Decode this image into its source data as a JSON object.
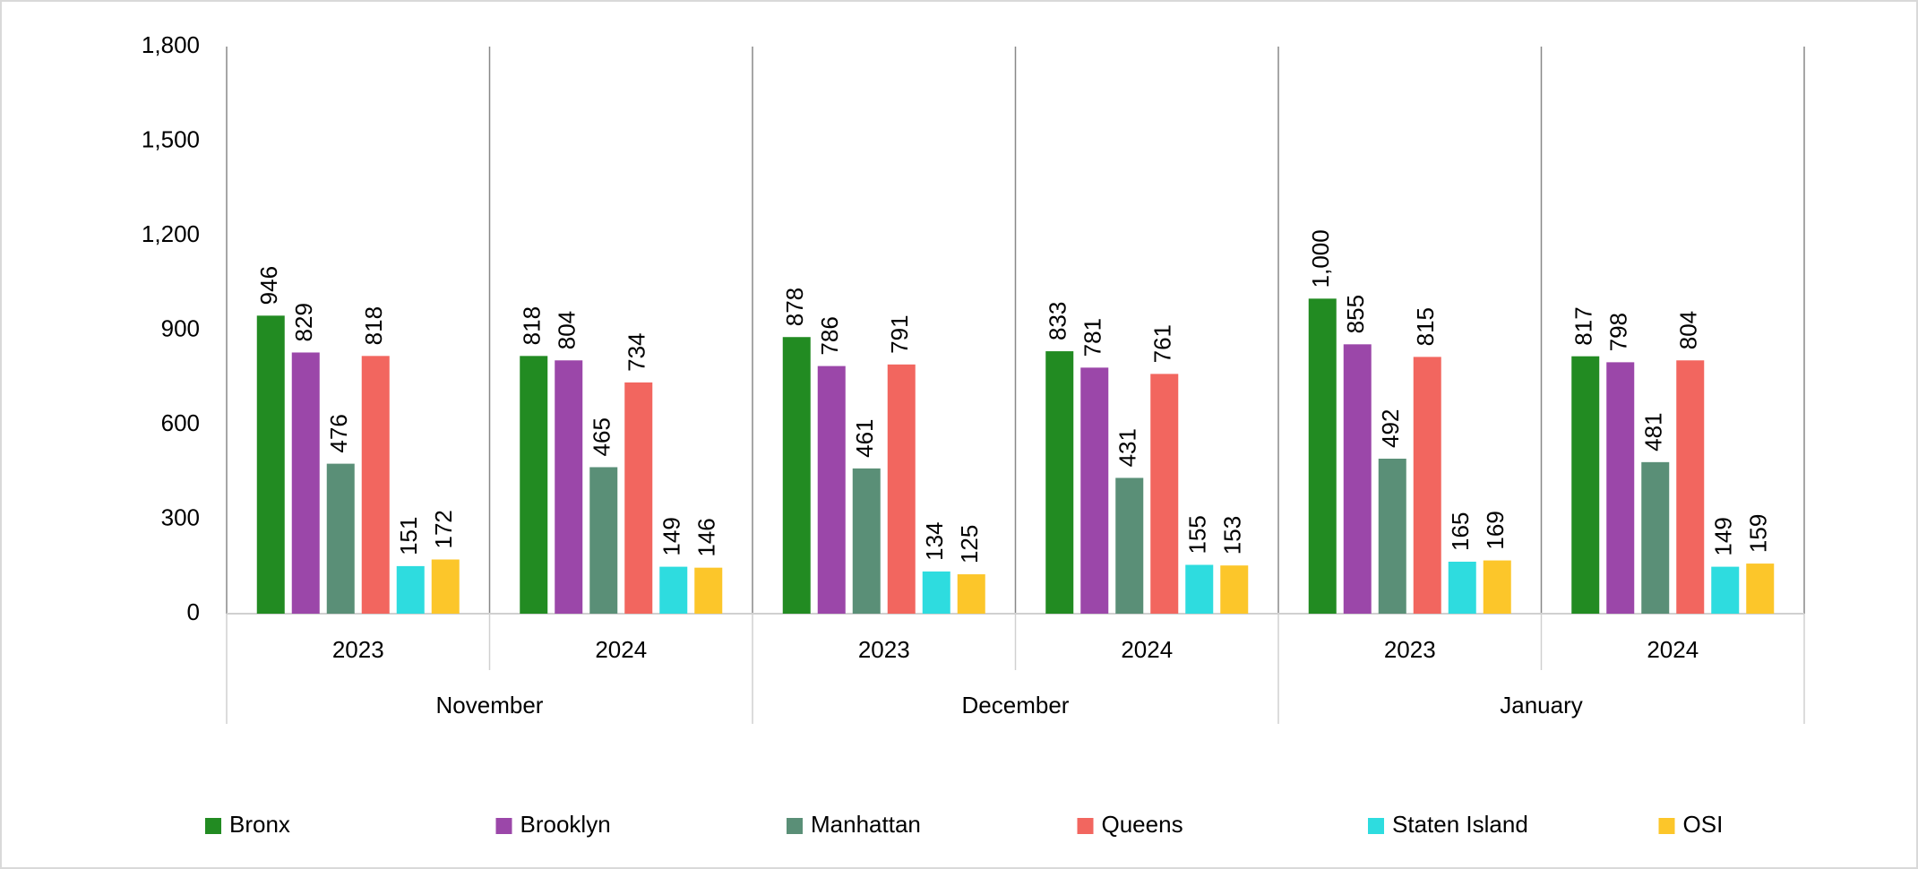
{
  "chart_data": {
    "type": "bar",
    "categories": [
      "2023",
      "2024",
      "2023",
      "2024",
      "2023",
      "2024"
    ],
    "category_groups": [
      "November",
      "December",
      "January"
    ],
    "series": [
      {
        "name": "Bronx",
        "color": "#228b22",
        "values": [
          946,
          818,
          878,
          833,
          1000,
          817
        ],
        "value_labels": [
          "946",
          "818",
          "878",
          "833",
          "1,000",
          "817"
        ]
      },
      {
        "name": "Brooklyn",
        "color": "#9b47a9",
        "values": [
          829,
          804,
          786,
          781,
          855,
          798
        ]
      },
      {
        "name": "Manhattan",
        "color": "#5a8f77",
        "values": [
          476,
          465,
          461,
          431,
          492,
          481
        ]
      },
      {
        "name": "Queens",
        "color": "#f2665f",
        "values": [
          818,
          734,
          791,
          761,
          815,
          804
        ]
      },
      {
        "name": "Staten Island",
        "color": "#2edcdf",
        "values": [
          151,
          149,
          134,
          155,
          165,
          149
        ]
      },
      {
        "name": "OSI",
        "color": "#fcc62a",
        "values": [
          172,
          146,
          125,
          153,
          169,
          159
        ]
      }
    ],
    "ylim": [
      0,
      1800
    ],
    "yticks": [
      0,
      300,
      600,
      900,
      {
        "value": 1200,
        "label": "1,200"
      },
      {
        "value": 1500,
        "label": "1,500"
      },
      {
        "value": 1800,
        "label": "1,800"
      }
    ],
    "legend": "bottom"
  }
}
